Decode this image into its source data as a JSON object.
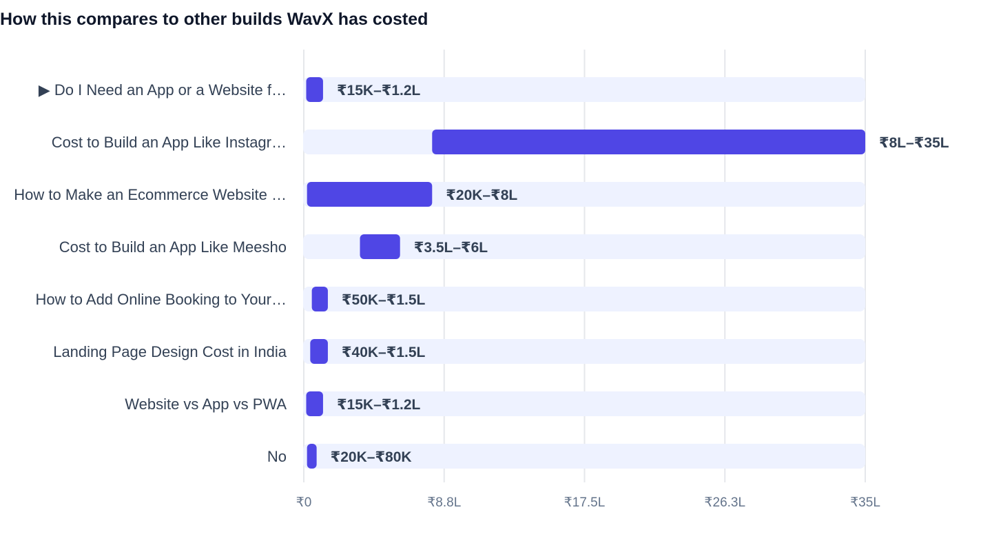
{
  "header": {
    "title": "How this compares to other builds WavX has costed"
  },
  "chart_data": {
    "type": "bar",
    "subtype": "horizontal-range",
    "title": "How this compares to other builds WavX has costed",
    "xlim": [
      0,
      3500000
    ],
    "x_ticks": [
      {
        "value": 0,
        "label": "₹0"
      },
      {
        "value": 875000,
        "label": "₹8.8L"
      },
      {
        "value": 1750000,
        "label": "₹17.5L"
      },
      {
        "value": 2625000,
        "label": "₹26.3L"
      },
      {
        "value": 3500000,
        "label": "₹35L"
      }
    ],
    "grid": true,
    "colors": {
      "bar": "#4f46e5",
      "track": "#eef2ff",
      "grid": "#e5e7eb",
      "label": "#334155",
      "tick": "#64748b"
    },
    "rows": [
      {
        "label": "▶ Do I Need an App or a Website f…",
        "min": 15000,
        "max": 120000,
        "range_label": "₹15K–₹1.2L"
      },
      {
        "label": "Cost to Build an App Like Instagr…",
        "min": 800000,
        "max": 3500000,
        "range_label": "₹8L–₹35L"
      },
      {
        "label": "How to Make an Ecommerce Website …",
        "min": 20000,
        "max": 800000,
        "range_label": "₹20K–₹8L"
      },
      {
        "label": "Cost to Build an App Like Meesho",
        "min": 350000,
        "max": 600000,
        "range_label": "₹3.5L–₹6L"
      },
      {
        "label": "How to Add Online Booking to Your…",
        "min": 50000,
        "max": 150000,
        "range_label": "₹50K–₹1.5L"
      },
      {
        "label": "Landing Page Design Cost in India",
        "min": 40000,
        "max": 150000,
        "range_label": "₹40K–₹1.5L"
      },
      {
        "label": "Website vs App vs PWA",
        "min": 15000,
        "max": 120000,
        "range_label": "₹15K–₹1.2L"
      },
      {
        "label": "No",
        "min": 20000,
        "max": 80000,
        "range_label": "₹20K–₹80K"
      }
    ]
  }
}
